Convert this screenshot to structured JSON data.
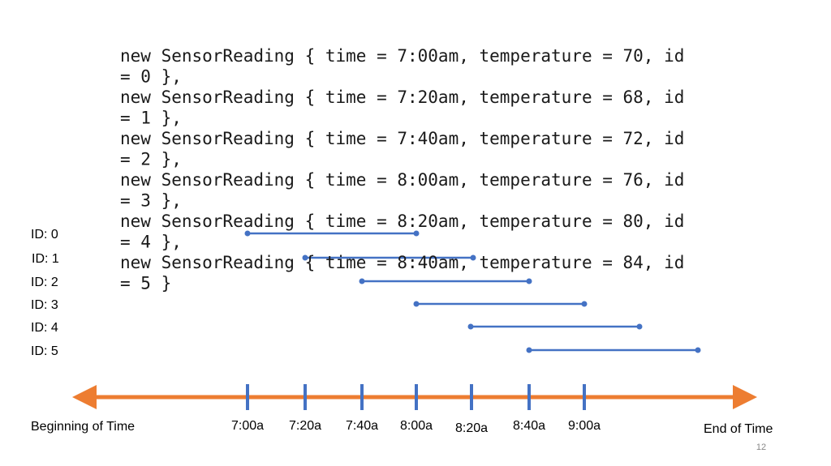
{
  "code_lines": [
    "new SensorReading { time = 7:00am, temperature = 70, id",
    "= 0 },",
    "new SensorReading { time = 7:20am, temperature = 68, id",
    "= 1 },",
    "new SensorReading { time = 7:40am, temperature = 72, id",
    "= 2 },",
    "new SensorReading { time = 8:00am, temperature = 76, id",
    "= 3 },",
    "new SensorReading { time = 8:20am, temperature = 80, id",
    "= 4 },",
    "new SensorReading { time = 8:40am, temperature = 84, id",
    "= 5 }"
  ],
  "id_labels": [
    "ID: 0",
    "ID: 1",
    "ID: 2",
    "ID: 3",
    "ID: 4",
    "ID: 5"
  ],
  "timeline": {
    "start_label": "Beginning of Time",
    "end_label": "End of Time",
    "ticks": [
      "7:00a",
      "7:20a",
      "7:40a",
      "8:00a",
      "8:20a",
      "8:40a",
      "9:00a"
    ]
  },
  "page_number": "12"
}
